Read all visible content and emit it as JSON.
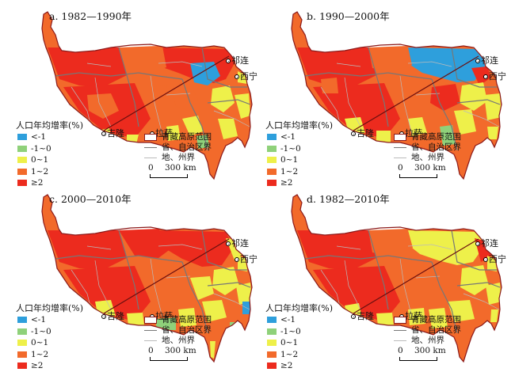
{
  "panels": [
    {
      "title": "a. 1982—1990年",
      "scheme": "a"
    },
    {
      "title": "b. 1990—2000年",
      "scheme": "b"
    },
    {
      "title": "c. 2000—2010年",
      "scheme": "c"
    },
    {
      "title": "d. 1982—2010年",
      "scheme": "d"
    }
  ],
  "cities": {
    "qilian": "祁连",
    "xining": "西宁",
    "jilong": "吉隆",
    "lasa": "拉萨"
  },
  "legend": {
    "title": "人口年均增率(%)",
    "classes": [
      {
        "label": "<-1",
        "color": "#2e9fdc"
      },
      {
        "label": "-1~0",
        "color": "#8fd17a"
      },
      {
        "label": "0~1",
        "color": "#eef04a"
      },
      {
        "label": "1~2",
        "color": "#f26a2b"
      },
      {
        "label": "≥2",
        "color": "#ec2b1e"
      }
    ]
  },
  "boundaries": {
    "plateau": "青藏高原范围",
    "province": "省、自治区界",
    "prefecture": "地、州界"
  },
  "scalebar": {
    "zero": "0",
    "distance": "300 km"
  },
  "colors": {
    "plateau_outline": "#8b1a1a",
    "province_line": "#777777",
    "prefecture_line": "#bbbbbb",
    "no_data": "#ffffff"
  }
}
